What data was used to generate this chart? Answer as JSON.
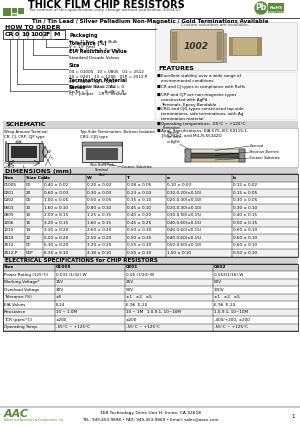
{
  "title": "THICK FILM CHIP RESISTORS",
  "subtitle": "The content of this specification may change without notification 10/04/07",
  "line2": "Tin / Tin Lead / Silver Palladium Non-Magnetic / Gold Terminations Available",
  "line3": "Custom solutions are available.",
  "how_to_order_title": "HOW TO ORDER",
  "order_parts": [
    "CR",
    "0",
    "10",
    "1002",
    "F",
    "M"
  ],
  "packaging_label": "Packaging",
  "packaging_text": "1k = 7\" Reel    B = Bulk\nV = 13\" Reel",
  "tolerance_label": "Tolerance (%)",
  "tolerance_text": "J = ±5   G = ±2   F = ±1",
  "eia_label": "EIA Resistance Value",
  "eia_text": "Standard Decade Values",
  "size_label": "Size",
  "size_text": "00 = 01005   10 = 0805   01 = 2512\n20 = 0201   15 = 1206   01P = 2512 P\n05 = 0402   14 = 1210\n10 = 0603   12 = 2010",
  "termination_label": "Termination Material",
  "termination_text": "Sn = Loose Blank    Au = G\nSn/Ni = 1             Au/Ni = R",
  "series_label": "Series",
  "series_text": "CJ = Jumper    CR = Resistor",
  "schematic_title": "SCHEMATIC",
  "wrap_title": "Wrap Around Terminal\nCR, CJ, CRP, CJP type",
  "top_title": "Top Side Termination, Bottom Isolated\nCRG, CJG type",
  "dimensions_title": "DIMENSIONS (mm)",
  "features_title": "FEATURES",
  "features": [
    "Excellent stability over a wide range of\nenvironmental conditions",
    "CR and CJ types in compliance with RoHs",
    "CRP and CJP are non-magnetic types\nconstructed with AgPd\nTerminals, Epoxy Bondable",
    "CRG and CJG types constructed top side\nterminations, side terminations, with Ag\ntermination material",
    "Operating temperature: -55°C ~ +125°C",
    "Appl. Specifications: EIA 575, IEC 60115-1,\nJIS 5201-1, and MIL-R-55342D"
  ],
  "dim_headers": [
    "Size",
    "Size Code",
    "L",
    "W",
    "T",
    "a",
    "b"
  ],
  "dim_rows": [
    [
      "01005",
      "00",
      "0.40 ± 0.02",
      "0.20 ± 0.02",
      "0.08 ± 0.05",
      "0.10 ± 0.03",
      "0.12 ± 0.02"
    ],
    [
      "0201",
      "20",
      "0.60 ± 0.03",
      "0.30 ± 0.03",
      "0.23 ± 0.03",
      "0.10-0.20(±0.10)",
      "0.15 ± 0.05"
    ],
    [
      "0402",
      "05",
      "1.00 ± 0.05",
      "0.50 ± 0.05",
      "0.35 ± 0.10",
      "0.20-0.30(±0.10)",
      "0.30 ± 0.05"
    ],
    [
      "0603",
      "10",
      "1.60 ± 0.10",
      "0.80 ± 0.10",
      "0.45 ± 0.10",
      "0.20-0.30(±0.10)",
      "0.30 ± 0.10"
    ],
    [
      "0805",
      "10",
      "2.00 ± 0.15",
      "1.25 ± 0.15",
      "0.40 ± 0.20",
      "0.30-0.50(±0.15)",
      "0.40 ± 0.15"
    ],
    [
      "1206",
      "15",
      "3.20 ± 0.15",
      "1.60 ± 0.15",
      "0.45 ± 0.25",
      "0.40-0.60(±0.15)",
      "0.50 ± 0.15"
    ],
    [
      "1210",
      "14",
      "3.20 ± 0.20",
      "2.60 ± 0.20",
      "0.50 ± 0.30",
      "0.40-0.60(±0.15)",
      "0.60 ± 0.10"
    ],
    [
      "2010",
      "12",
      "5.00 ± 0.20",
      "2.50 ± 0.20",
      "0.50 ± 0.30",
      "0.40-0.60(±0.15)",
      "0.60 ± 0.10"
    ],
    [
      "2512",
      "01",
      "6.30 ± 0.20",
      "3.20 ± 0.20",
      "0.55 ± 0.30",
      "0.50-0.60(±0.10)",
      "0.60 ± 0.10"
    ],
    [
      "2512-P",
      "01P",
      "6.35 ± 0.10",
      "3.18 ± 0.10",
      "0.55 ± 0.10",
      "1.50 ± 0.10",
      "0.50 ± 0.10"
    ]
  ],
  "elec_title": "ELECTRICAL SPECIFICATIONS for CHIP RESISTORS",
  "elec_col_headers": [
    "Size",
    "01005",
    "0201",
    "0402"
  ],
  "elec_rows": [
    [
      "Power Rating (125°C)",
      "0.031 (1/32) W",
      "0.05 (1/20) W",
      "0.063(1/16) W"
    ],
    [
      "Working Voltage*",
      "15V",
      "25V",
      "50V"
    ],
    [
      "Overload Voltage",
      "30V",
      "50V",
      "100V"
    ],
    [
      "Tolerance (%)",
      "±5",
      "±1   ±2   ±5",
      "±1   ±2   ±5"
    ],
    [
      "EIA Values",
      "E-24",
      "E-96  E-24",
      "E-96  E-24"
    ],
    [
      "Resistance",
      "10 ~ 1.0M",
      "10 ~ 1M   1.0-9.1, 10~10M",
      "1.0-9.1, 10~10M"
    ],
    [
      "TCR (ppm/°C)",
      "±200",
      "±200",
      "-400/+200, ±200"
    ],
    [
      "Operating Temp.",
      "-55°C ~ +125°C",
      "-55°C ~ +125°C",
      "-55°C ~ +125°C"
    ]
  ],
  "footer_logo": "AAC",
  "footer_company": "168 Technology Drive Unit H, Irvine, CA 92618",
  "footer_contact": "TEL: 949-453-9898 • FAX: 949-453-9869 • Email: sales@aacx.com",
  "bg_color": "#ffffff",
  "green_color": "#5a8a3a",
  "blue_color": "#1a3a6b",
  "section_bg": "#d4d4d4",
  "table_header_bg": "#d4d4d4",
  "table_alt_bg": "#f0f0f0"
}
